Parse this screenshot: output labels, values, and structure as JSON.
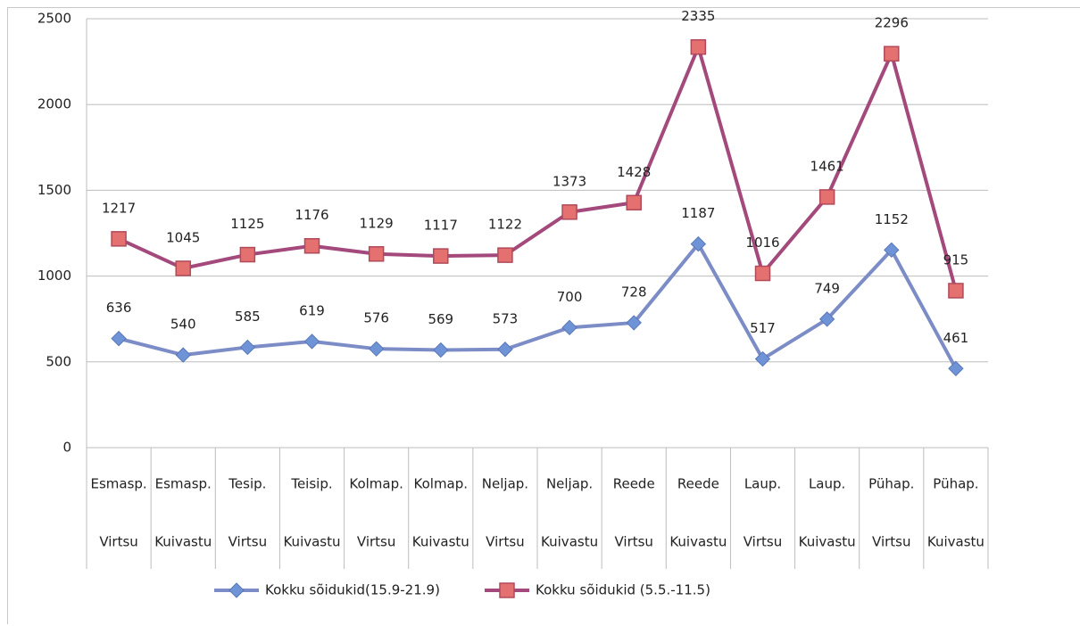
{
  "chart_data": {
    "type": "line",
    "categories": [
      [
        "Esmasp.",
        "Virtsu"
      ],
      [
        "Esmasp.",
        "Kuivastu"
      ],
      [
        "Tesip.",
        "Virtsu"
      ],
      [
        "Teisip.",
        "Kuivastu"
      ],
      [
        "Kolmap.",
        "Virtsu"
      ],
      [
        "Kolmap.",
        "Kuivastu"
      ],
      [
        "Neljap.",
        "Virtsu"
      ],
      [
        "Neljap.",
        "Kuivastu"
      ],
      [
        "Reede",
        "Virtsu"
      ],
      [
        "Reede",
        "Kuivastu"
      ],
      [
        "Laup.",
        "Virtsu"
      ],
      [
        "Laup.",
        "Kuivastu"
      ],
      [
        "Pühap.",
        "Virtsu"
      ],
      [
        "Pühap.",
        "Kuivastu"
      ]
    ],
    "series": [
      {
        "name": "Kokku sõidukid(15.9-21.9)",
        "color": "#7b8cc6",
        "marker_color": "#6e93d6",
        "marker": "diamond",
        "values": [
          636,
          540,
          585,
          619,
          576,
          569,
          573,
          700,
          728,
          1187,
          517,
          749,
          1152,
          461
        ]
      },
      {
        "name": "Kokku sõidukid (5.5.-11.5)",
        "color": "#a3497c",
        "marker_color": "#e4716f",
        "marker": "square",
        "values": [
          1217,
          1045,
          1125,
          1176,
          1129,
          1117,
          1122,
          1373,
          1428,
          2335,
          1016,
          1461,
          2296,
          915
        ]
      }
    ],
    "ylim": [
      0,
      2500
    ],
    "yticks": [
      0,
      500,
      1000,
      1500,
      2000,
      2500
    ],
    "grid": true,
    "legend": "bottom"
  }
}
